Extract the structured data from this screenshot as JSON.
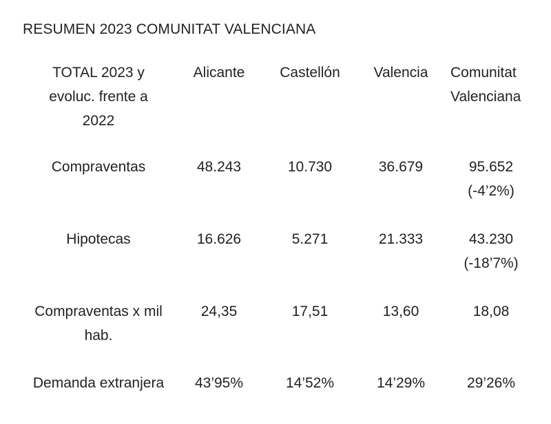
{
  "title": "RESUMEN 2023 COMUNITAT VALENCIANA",
  "table": {
    "header": {
      "label_lines": [
        "TOTAL 2023 y",
        "evoluc. frente a",
        "2022"
      ],
      "columns": [
        "Alicante",
        "Castellón",
        "Valencia"
      ],
      "last_column_lines": [
        "Comunitat",
        "Valenciana"
      ]
    },
    "rows": [
      {
        "label": "Compraventas",
        "alicante": "48.243",
        "castellon": "10.730",
        "valencia": "36.679",
        "total": "95.652",
        "total_change": "(-4’2%)"
      },
      {
        "label": "Hipotecas",
        "alicante": "16.626",
        "castellon": "5.271",
        "valencia": "21.333",
        "total": "43.230",
        "total_change": "(-18’7%)"
      },
      {
        "label_lines": [
          "Compraventas x mil",
          "hab."
        ],
        "alicante": "24,35",
        "castellon": "17,51",
        "valencia": "13,60",
        "total": "18,08"
      },
      {
        "label": "Demanda extranjera",
        "alicante": "43’95%",
        "castellon": "14’52%",
        "valencia": "14’29%",
        "total": "29’26%"
      }
    ]
  }
}
